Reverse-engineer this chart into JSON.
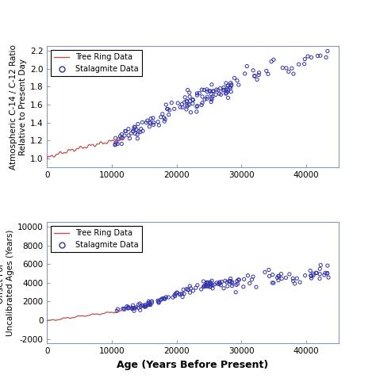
{
  "background_color": "#ffffff",
  "top_plot": {
    "ylabel": "Atmospheric C-14 / C-12 Ratio\nRelative to Present Day",
    "ylim": [
      0.9,
      2.25
    ],
    "yticks": [
      1.0,
      1.2,
      1.4,
      1.6,
      1.8,
      2.0,
      2.2
    ],
    "xlim": [
      0,
      45000
    ],
    "xticks": [
      0,
      10000,
      20000,
      30000,
      40000
    ]
  },
  "bottom_plot": {
    "ylabel": "Offset For\nUncalibrated Ages (Years)",
    "xlabel": "Age (Years Before Present)",
    "ylim": [
      -2500,
      10500
    ],
    "yticks": [
      -2000,
      0,
      2000,
      4000,
      6000,
      8000,
      10000
    ],
    "xlim": [
      0,
      45000
    ],
    "xticks": [
      0,
      10000,
      20000,
      30000,
      40000
    ]
  },
  "tree_ring_color": "#c0504d",
  "stalagmite_color": "#3333aa",
  "legend_edge_color": "#000000",
  "tick_label_color": "#000000",
  "spine_color": "#8899bb"
}
